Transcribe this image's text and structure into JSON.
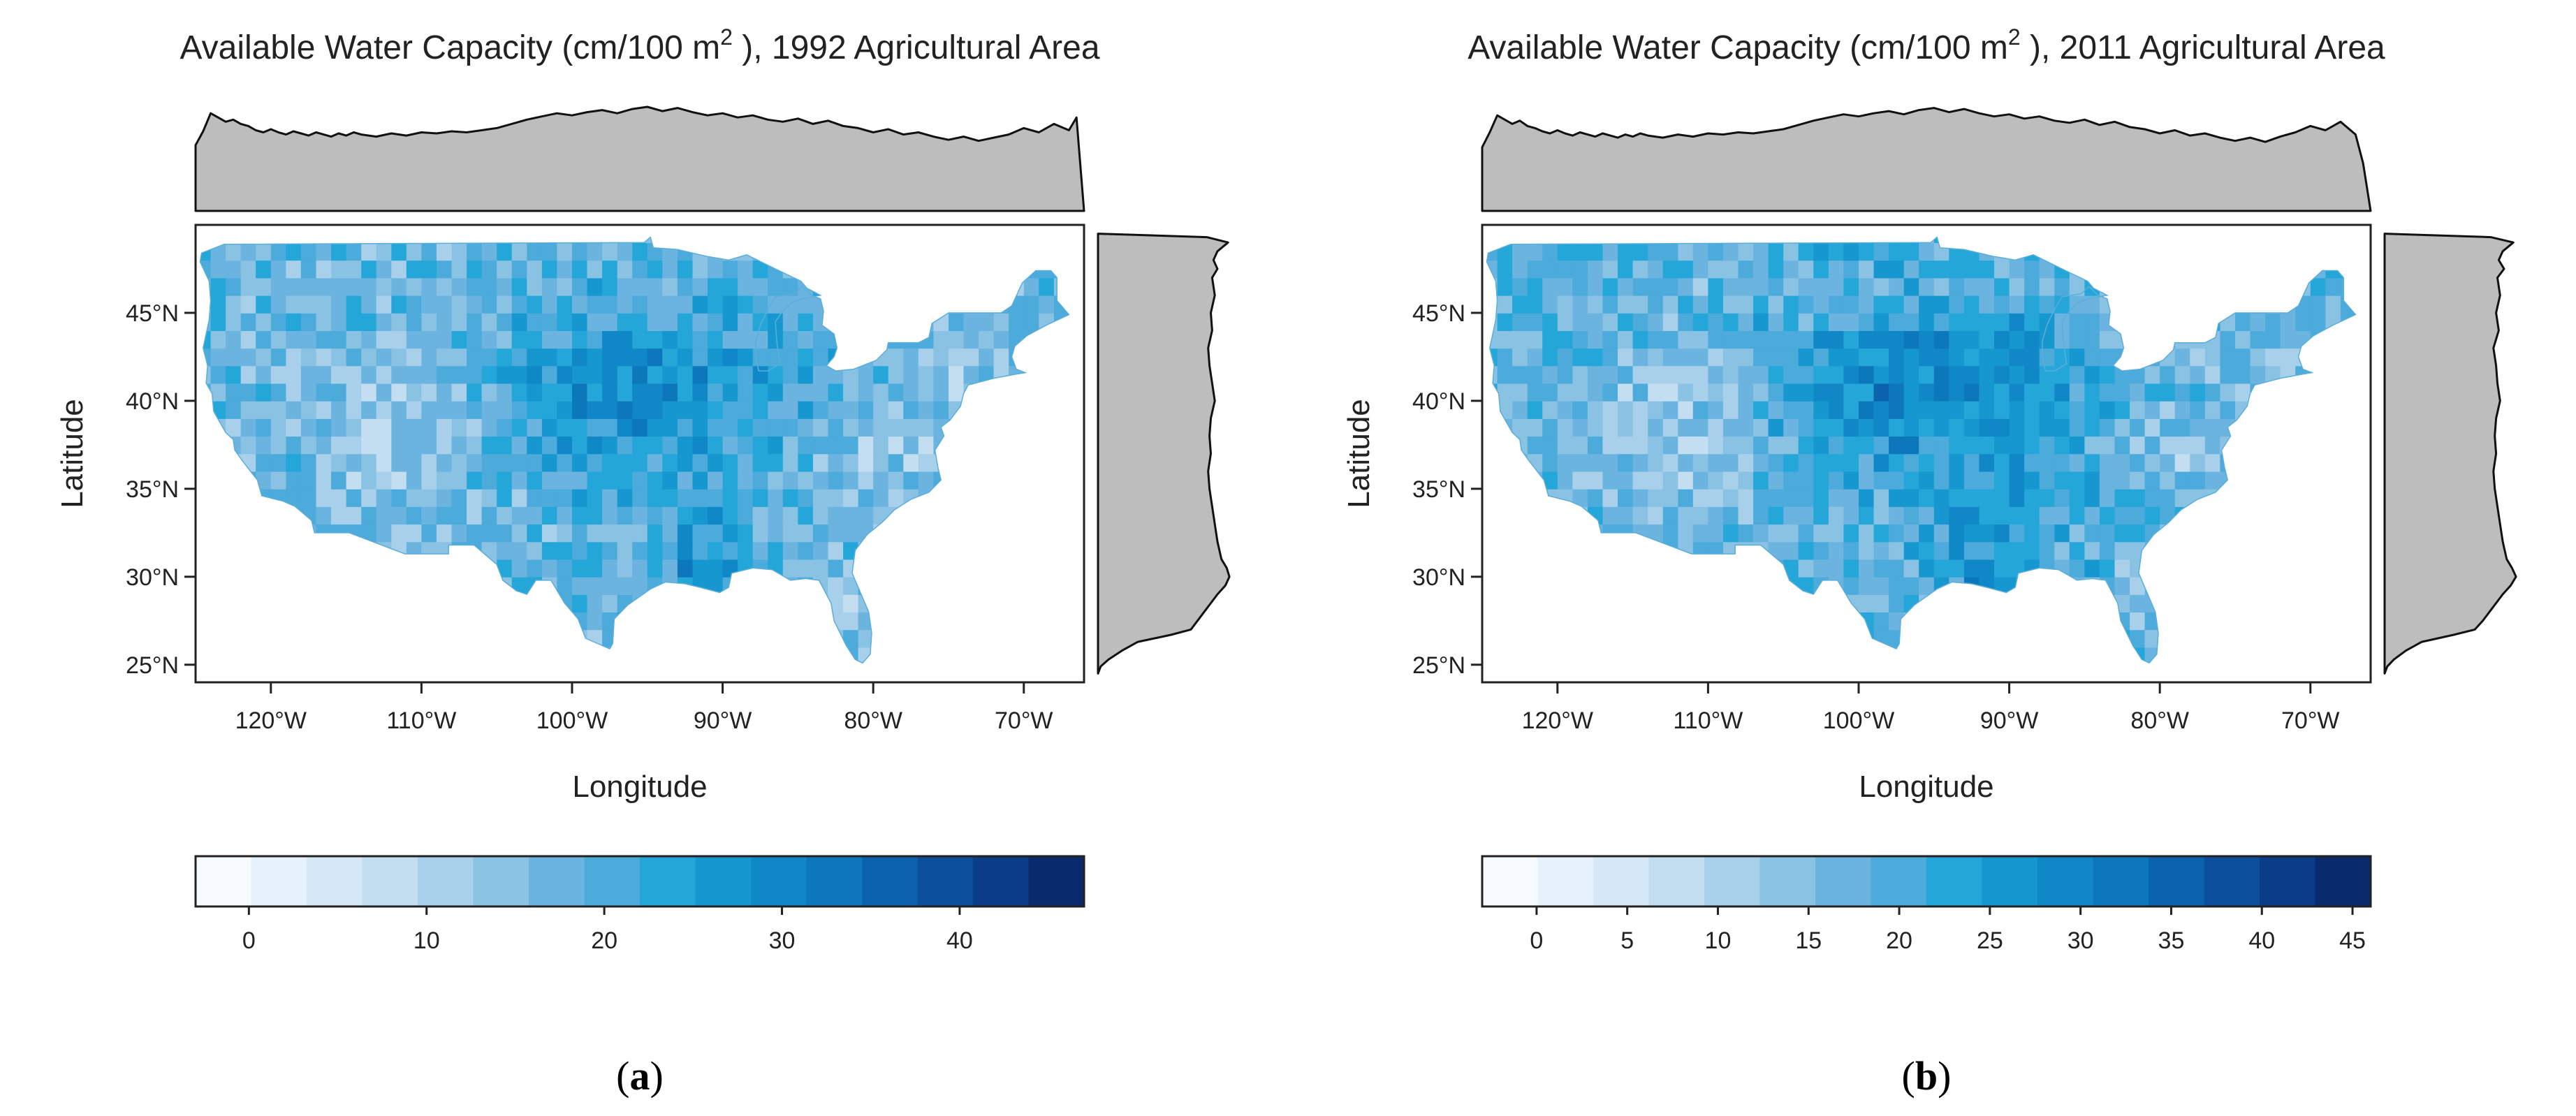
{
  "chart_data": [
    {
      "type": "heatmap",
      "panel_label_open": "(",
      "panel_label_letter": "a",
      "panel_label_close": ")",
      "title_main": "Available Water Capacity (cm/100 m",
      "title_sup": "2",
      "title_rest": " ), 1992 Agricultural Area",
      "xlabel": "Longitude",
      "ylabel": "Latitude",
      "xlim": [
        -125,
        -66
      ],
      "ylim": [
        24,
        50
      ],
      "x_ticks": [
        -120,
        -110,
        -100,
        -90,
        -80,
        -70
      ],
      "x_tick_labels": [
        "120°W",
        "110°W",
        "100°W",
        "90°W",
        "80°W",
        "70°W"
      ],
      "y_ticks": [
        25,
        30,
        35,
        40,
        45
      ],
      "y_tick_labels": [
        "25°N",
        "30°N",
        "35°N",
        "40°N",
        "45°N"
      ],
      "colorbar": {
        "range": [
          -3,
          47
        ],
        "ticks": [
          0,
          10,
          20,
          30,
          40
        ],
        "tick_labels": [
          "0",
          "10",
          "20",
          "30",
          "40"
        ],
        "colors": [
          "#f7fbff",
          "#e6f1fb",
          "#d6e8f6",
          "#c3ddf1",
          "#a8d0ea",
          "#8ac2e4",
          "#6bb4df",
          "#4cabdb",
          "#24a6d8",
          "#1697cf",
          "#1087c6",
          "#0d77bb",
          "#0b63ad",
          "#0b4f9c",
          "#0a3c88",
          "#0a2a6e"
        ]
      },
      "marginal_lon": [
        [
          -125,
          0.62
        ],
        [
          -124.5,
          0.75
        ],
        [
          -124,
          0.92
        ],
        [
          -123.5,
          0.88
        ],
        [
          -123,
          0.84
        ],
        [
          -122.5,
          0.86
        ],
        [
          -122,
          0.82
        ],
        [
          -121.5,
          0.8
        ],
        [
          -121,
          0.76
        ],
        [
          -120.5,
          0.74
        ],
        [
          -120,
          0.77
        ],
        [
          -119.5,
          0.74
        ],
        [
          -119,
          0.72
        ],
        [
          -118.5,
          0.75
        ],
        [
          -118,
          0.73
        ],
        [
          -117.5,
          0.71
        ],
        [
          -117,
          0.74
        ],
        [
          -116.5,
          0.72
        ],
        [
          -116,
          0.7
        ],
        [
          -115.5,
          0.73
        ],
        [
          -115,
          0.71
        ],
        [
          -114.5,
          0.74
        ],
        [
          -114,
          0.72
        ],
        [
          -113,
          0.7
        ],
        [
          -112,
          0.73
        ],
        [
          -111,
          0.71
        ],
        [
          -110,
          0.74
        ],
        [
          -109,
          0.73
        ],
        [
          -108,
          0.75
        ],
        [
          -107,
          0.74
        ],
        [
          -106,
          0.76
        ],
        [
          -105,
          0.78
        ],
        [
          -104,
          0.82
        ],
        [
          -103,
          0.86
        ],
        [
          -102,
          0.89
        ],
        [
          -101,
          0.92
        ],
        [
          -100,
          0.9
        ],
        [
          -99,
          0.93
        ],
        [
          -98,
          0.95
        ],
        [
          -97,
          0.92
        ],
        [
          -96,
          0.96
        ],
        [
          -95,
          0.98
        ],
        [
          -94,
          0.94
        ],
        [
          -93,
          0.97
        ],
        [
          -92,
          0.93
        ],
        [
          -91,
          0.9
        ],
        [
          -90,
          0.92
        ],
        [
          -89,
          0.88
        ],
        [
          -88,
          0.9
        ],
        [
          -87,
          0.86
        ],
        [
          -86,
          0.84
        ],
        [
          -85,
          0.87
        ],
        [
          -84,
          0.82
        ],
        [
          -83,
          0.85
        ],
        [
          -82,
          0.8
        ],
        [
          -81,
          0.78
        ],
        [
          -80,
          0.74
        ],
        [
          -79,
          0.77
        ],
        [
          -78,
          0.72
        ],
        [
          -77,
          0.74
        ],
        [
          -76,
          0.7
        ],
        [
          -75,
          0.67
        ],
        [
          -74,
          0.7
        ],
        [
          -73,
          0.66
        ],
        [
          -72,
          0.69
        ],
        [
          -71,
          0.72
        ],
        [
          -70,
          0.78
        ],
        [
          -69,
          0.74
        ],
        [
          -68,
          0.82
        ],
        [
          -67,
          0.76
        ],
        [
          -66.5,
          0.88
        ],
        [
          -66,
          0.0
        ]
      ],
      "marginal_lat": [
        [
          49.5,
          0.0
        ],
        [
          49.3,
          0.82
        ],
        [
          49,
          0.98
        ],
        [
          48.5,
          0.9
        ],
        [
          48,
          0.87
        ],
        [
          47.5,
          0.9
        ],
        [
          47,
          0.86
        ],
        [
          46,
          0.88
        ],
        [
          45,
          0.85
        ],
        [
          44,
          0.86
        ],
        [
          43,
          0.83
        ],
        [
          42,
          0.84
        ],
        [
          41,
          0.86
        ],
        [
          40,
          0.88
        ],
        [
          39,
          0.85
        ],
        [
          38,
          0.84
        ],
        [
          37,
          0.85
        ],
        [
          36,
          0.83
        ],
        [
          35,
          0.84
        ],
        [
          34,
          0.86
        ],
        [
          33,
          0.88
        ],
        [
          32,
          0.9
        ],
        [
          31,
          0.93
        ],
        [
          30.5,
          0.97
        ],
        [
          30,
          0.99
        ],
        [
          29.5,
          0.96
        ],
        [
          29,
          0.9
        ],
        [
          28.5,
          0.85
        ],
        [
          28,
          0.8
        ],
        [
          27.5,
          0.75
        ],
        [
          27,
          0.7
        ],
        [
          26.7,
          0.55
        ],
        [
          26.3,
          0.3
        ],
        [
          25.8,
          0.18
        ],
        [
          25.3,
          0.08
        ],
        [
          24.9,
          0.02
        ],
        [
          24.5,
          0.0
        ]
      ]
    },
    {
      "type": "heatmap",
      "panel_label_open": "(",
      "panel_label_letter": "b",
      "panel_label_close": ")",
      "title_main": "Available Water Capacity (cm/100 m",
      "title_sup": "2",
      "title_rest": " ), 2011 Agricultural Area",
      "xlabel": "Longitude",
      "ylabel": "Latitude",
      "xlim": [
        -125,
        -66
      ],
      "ylim": [
        24,
        50
      ],
      "x_ticks": [
        -120,
        -110,
        -100,
        -90,
        -80,
        -70
      ],
      "x_tick_labels": [
        "120°W",
        "110°W",
        "100°W",
        "90°W",
        "80°W",
        "70°W"
      ],
      "y_ticks": [
        25,
        30,
        35,
        40,
        45
      ],
      "y_tick_labels": [
        "25°N",
        "30°N",
        "35°N",
        "40°N",
        "45°N"
      ],
      "colorbar": {
        "range": [
          -3,
          46
        ],
        "ticks": [
          0,
          5,
          10,
          15,
          20,
          25,
          30,
          35,
          40,
          45
        ],
        "tick_labels": [
          "0",
          "5",
          "10",
          "15",
          "20",
          "25",
          "30",
          "35",
          "40",
          "45"
        ],
        "colors": [
          "#f7fbff",
          "#e6f1fb",
          "#d6e8f6",
          "#c3ddf1",
          "#a8d0ea",
          "#8ac2e4",
          "#6bb4df",
          "#4cabdb",
          "#24a6d8",
          "#1697cf",
          "#1087c6",
          "#0d77bb",
          "#0b63ad",
          "#0b4f9c",
          "#0a3c88",
          "#0a2a6e"
        ]
      },
      "marginal_lon": [
        [
          -125,
          0.6
        ],
        [
          -124.5,
          0.74
        ],
        [
          -124,
          0.9
        ],
        [
          -123.5,
          0.86
        ],
        [
          -123,
          0.82
        ],
        [
          -122.5,
          0.85
        ],
        [
          -122,
          0.8
        ],
        [
          -121.5,
          0.78
        ],
        [
          -121,
          0.75
        ],
        [
          -120.5,
          0.73
        ],
        [
          -120,
          0.76
        ],
        [
          -119.5,
          0.73
        ],
        [
          -119,
          0.71
        ],
        [
          -118.5,
          0.74
        ],
        [
          -118,
          0.72
        ],
        [
          -117.5,
          0.7
        ],
        [
          -117,
          0.73
        ],
        [
          -116.5,
          0.71
        ],
        [
          -116,
          0.69
        ],
        [
          -115.5,
          0.72
        ],
        [
          -115,
          0.7
        ],
        [
          -114.5,
          0.73
        ],
        [
          -114,
          0.71
        ],
        [
          -113,
          0.69
        ],
        [
          -112,
          0.72
        ],
        [
          -111,
          0.7
        ],
        [
          -110,
          0.73
        ],
        [
          -109,
          0.72
        ],
        [
          -108,
          0.74
        ],
        [
          -107,
          0.73
        ],
        [
          -106,
          0.75
        ],
        [
          -105,
          0.77
        ],
        [
          -104,
          0.81
        ],
        [
          -103,
          0.85
        ],
        [
          -102,
          0.88
        ],
        [
          -101,
          0.91
        ],
        [
          -100,
          0.89
        ],
        [
          -99,
          0.92
        ],
        [
          -98,
          0.94
        ],
        [
          -97,
          0.91
        ],
        [
          -96,
          0.95
        ],
        [
          -95,
          0.97
        ],
        [
          -94,
          0.93
        ],
        [
          -93,
          0.96
        ],
        [
          -92,
          0.92
        ],
        [
          -91,
          0.89
        ],
        [
          -90,
          0.91
        ],
        [
          -89,
          0.87
        ],
        [
          -88,
          0.89
        ],
        [
          -87,
          0.85
        ],
        [
          -86,
          0.83
        ],
        [
          -85,
          0.86
        ],
        [
          -84,
          0.81
        ],
        [
          -83,
          0.84
        ],
        [
          -82,
          0.79
        ],
        [
          -81,
          0.77
        ],
        [
          -80,
          0.73
        ],
        [
          -79,
          0.76
        ],
        [
          -78,
          0.71
        ],
        [
          -77,
          0.73
        ],
        [
          -76,
          0.69
        ],
        [
          -75,
          0.66
        ],
        [
          -74,
          0.69
        ],
        [
          -73,
          0.65
        ],
        [
          -72,
          0.7
        ],
        [
          -71,
          0.74
        ],
        [
          -70,
          0.8
        ],
        [
          -69,
          0.76
        ],
        [
          -68,
          0.84
        ],
        [
          -67,
          0.72
        ],
        [
          -66.5,
          0.45
        ],
        [
          -66,
          0.0
        ]
      ],
      "marginal_lat": [
        [
          49.5,
          0.0
        ],
        [
          49.3,
          0.8
        ],
        [
          49,
          0.97
        ],
        [
          48.5,
          0.89
        ],
        [
          48,
          0.86
        ],
        [
          47.5,
          0.9
        ],
        [
          47,
          0.85
        ],
        [
          46,
          0.87
        ],
        [
          45,
          0.84
        ],
        [
          44,
          0.86
        ],
        [
          43,
          0.82
        ],
        [
          42,
          0.84
        ],
        [
          41,
          0.85
        ],
        [
          40,
          0.87
        ],
        [
          39,
          0.84
        ],
        [
          38,
          0.83
        ],
        [
          37,
          0.84
        ],
        [
          36,
          0.82
        ],
        [
          35,
          0.83
        ],
        [
          34,
          0.85
        ],
        [
          33,
          0.87
        ],
        [
          32,
          0.89
        ],
        [
          31,
          0.92
        ],
        [
          30.5,
          0.96
        ],
        [
          30,
          0.99
        ],
        [
          29.5,
          0.95
        ],
        [
          29,
          0.89
        ],
        [
          28.5,
          0.84
        ],
        [
          28,
          0.79
        ],
        [
          27.5,
          0.74
        ],
        [
          27,
          0.68
        ],
        [
          26.7,
          0.52
        ],
        [
          26.3,
          0.28
        ],
        [
          25.8,
          0.16
        ],
        [
          25.3,
          0.07
        ],
        [
          24.9,
          0.02
        ],
        [
          24.5,
          0.0
        ]
      ]
    }
  ]
}
